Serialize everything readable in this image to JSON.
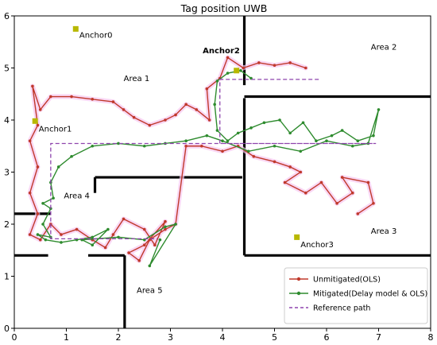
{
  "chart_data": {
    "type": "line",
    "title": "Tag position UWB",
    "xlim": [
      0,
      8
    ],
    "ylim": [
      0,
      6
    ],
    "x_ticks": [
      0,
      1,
      2,
      3,
      4,
      5,
      6,
      7,
      8
    ],
    "y_ticks": [
      0,
      1,
      2,
      3,
      4,
      5,
      6
    ],
    "grid": false,
    "legend_position": "bottom-right",
    "walls": [
      [
        [
          0.0,
          2.2
        ],
        [
          0.7,
          2.2
        ]
      ],
      [
        [
          0.0,
          1.4
        ],
        [
          0.65,
          1.4
        ]
      ],
      [
        [
          1.42,
          1.4
        ],
        [
          2.12,
          1.4
        ]
      ],
      [
        [
          2.12,
          1.4
        ],
        [
          2.12,
          0.0
        ]
      ],
      [
        [
          1.55,
          2.6
        ],
        [
          1.55,
          2.9
        ]
      ],
      [
        [
          1.55,
          2.9
        ],
        [
          4.38,
          2.9
        ]
      ],
      [
        [
          4.42,
          6.0
        ],
        [
          4.42,
          4.67
        ]
      ],
      [
        [
          4.42,
          4.42
        ],
        [
          4.42,
          1.4
        ]
      ],
      [
        [
          4.42,
          4.45
        ],
        [
          8.0,
          4.45
        ]
      ],
      [
        [
          4.42,
          1.4
        ],
        [
          8.0,
          1.4
        ]
      ]
    ],
    "areas": [
      {
        "label": "Area 1",
        "x": 2.35,
        "y": 4.75
      },
      {
        "label": "Area 2",
        "x": 7.1,
        "y": 5.35
      },
      {
        "label": "Area 3",
        "x": 7.1,
        "y": 1.82
      },
      {
        "label": "Area 4",
        "x": 1.2,
        "y": 2.5
      },
      {
        "label": "Area 5",
        "x": 2.6,
        "y": 0.68
      }
    ],
    "anchors": [
      {
        "label": "Anchor0",
        "x": 1.18,
        "y": 5.75,
        "label_x": 1.25,
        "label_y": 5.58,
        "bold": false
      },
      {
        "label": "Anchor1",
        "x": 0.4,
        "y": 3.98,
        "label_x": 0.47,
        "label_y": 3.78,
        "bold": false
      },
      {
        "label": "Anchor2",
        "x": 4.27,
        "y": 4.95,
        "label_x": 3.62,
        "label_y": 5.28,
        "bold": true
      },
      {
        "label": "Anchor3",
        "x": 5.43,
        "y": 1.75,
        "label_x": 5.5,
        "label_y": 1.56,
        "bold": false
      }
    ],
    "series": [
      {
        "name": "Unmitigated(OLS)",
        "color": "#c0392b",
        "points": [
          [
            5.6,
            5.0
          ],
          [
            5.3,
            5.1
          ],
          [
            5.0,
            5.05
          ],
          [
            4.7,
            5.1
          ],
          [
            4.4,
            5.0
          ],
          [
            4.1,
            5.2
          ],
          [
            3.95,
            4.8
          ],
          [
            3.7,
            4.6
          ],
          [
            3.75,
            4.0
          ],
          [
            3.5,
            4.2
          ],
          [
            3.3,
            4.3
          ],
          [
            3.1,
            4.1
          ],
          [
            2.9,
            4.0
          ],
          [
            2.6,
            3.9
          ],
          [
            2.3,
            4.05
          ],
          [
            2.1,
            4.2
          ],
          [
            1.9,
            4.35
          ],
          [
            1.5,
            4.4
          ],
          [
            1.1,
            4.45
          ],
          [
            0.7,
            4.45
          ],
          [
            0.5,
            4.2
          ],
          [
            0.35,
            4.65
          ],
          [
            0.45,
            3.9
          ],
          [
            0.3,
            3.6
          ],
          [
            0.45,
            3.1
          ],
          [
            0.3,
            2.6
          ],
          [
            0.45,
            2.2
          ],
          [
            0.3,
            1.8
          ],
          [
            0.5,
            1.7
          ],
          [
            0.7,
            2.0
          ],
          [
            0.9,
            1.8
          ],
          [
            1.2,
            1.9
          ],
          [
            1.5,
            1.7
          ],
          [
            1.75,
            1.55
          ],
          [
            1.9,
            1.8
          ],
          [
            2.1,
            2.1
          ],
          [
            2.5,
            1.9
          ],
          [
            2.7,
            1.6
          ],
          [
            2.9,
            2.05
          ],
          [
            2.5,
            1.6
          ],
          [
            2.2,
            1.45
          ],
          [
            2.4,
            1.3
          ],
          [
            2.6,
            1.7
          ],
          [
            2.9,
            1.9
          ],
          [
            3.1,
            2.0
          ],
          [
            3.3,
            3.5
          ],
          [
            3.6,
            3.5
          ],
          [
            4.0,
            3.4
          ],
          [
            4.3,
            3.5
          ],
          [
            4.6,
            3.3
          ],
          [
            5.0,
            3.2
          ],
          [
            5.3,
            3.1
          ],
          [
            5.5,
            3.0
          ],
          [
            5.2,
            2.8
          ],
          [
            5.6,
            2.6
          ],
          [
            5.9,
            2.8
          ],
          [
            6.2,
            2.4
          ],
          [
            6.5,
            2.6
          ],
          [
            6.3,
            2.9
          ],
          [
            6.8,
            2.8
          ],
          [
            6.9,
            2.4
          ],
          [
            6.6,
            2.2
          ]
        ]
      },
      {
        "name": "Mitigated(Delay model & OLS)",
        "color": "#2e8b2e",
        "points": [
          [
            4.55,
            4.8
          ],
          [
            4.35,
            4.95
          ],
          [
            4.1,
            4.9
          ],
          [
            3.9,
            4.75
          ],
          [
            3.85,
            4.3
          ],
          [
            3.9,
            3.8
          ],
          [
            4.1,
            3.6
          ],
          [
            4.3,
            3.75
          ],
          [
            4.55,
            3.85
          ],
          [
            4.8,
            3.95
          ],
          [
            5.1,
            4.0
          ],
          [
            5.3,
            3.75
          ],
          [
            5.55,
            3.95
          ],
          [
            5.8,
            3.6
          ],
          [
            6.1,
            3.7
          ],
          [
            6.3,
            3.8
          ],
          [
            6.6,
            3.6
          ],
          [
            6.9,
            3.7
          ],
          [
            7.0,
            4.2
          ],
          [
            6.8,
            3.55
          ],
          [
            6.5,
            3.5
          ],
          [
            6.0,
            3.6
          ],
          [
            5.5,
            3.4
          ],
          [
            5.0,
            3.5
          ],
          [
            4.5,
            3.4
          ],
          [
            4.0,
            3.6
          ],
          [
            3.7,
            3.7
          ],
          [
            3.3,
            3.6
          ],
          [
            2.9,
            3.55
          ],
          [
            2.5,
            3.5
          ],
          [
            2.0,
            3.55
          ],
          [
            1.5,
            3.5
          ],
          [
            1.1,
            3.3
          ],
          [
            0.85,
            3.1
          ],
          [
            0.7,
            2.8
          ],
          [
            0.75,
            2.5
          ],
          [
            0.55,
            2.4
          ],
          [
            0.7,
            2.3
          ],
          [
            0.55,
            2.0
          ],
          [
            0.7,
            1.75
          ],
          [
            0.45,
            1.8
          ],
          [
            0.6,
            1.7
          ],
          [
            0.9,
            1.65
          ],
          [
            1.2,
            1.7
          ],
          [
            1.5,
            1.75
          ],
          [
            1.8,
            1.9
          ],
          [
            1.5,
            1.6
          ],
          [
            1.3,
            1.7
          ],
          [
            2.0,
            1.75
          ],
          [
            2.5,
            1.7
          ],
          [
            2.9,
            1.95
          ],
          [
            3.1,
            2.0
          ],
          [
            2.6,
            1.2
          ],
          [
            2.8,
            1.7
          ]
        ]
      },
      {
        "name": "Reference path",
        "color": "#8e44ad",
        "points": [
          [
            5.85,
            4.78
          ],
          [
            3.95,
            4.78
          ],
          [
            3.95,
            3.55
          ],
          [
            6.95,
            3.55
          ],
          [
            3.95,
            3.55
          ],
          [
            0.7,
            3.55
          ],
          [
            0.7,
            1.72
          ],
          [
            2.75,
            1.72
          ]
        ]
      }
    ]
  }
}
